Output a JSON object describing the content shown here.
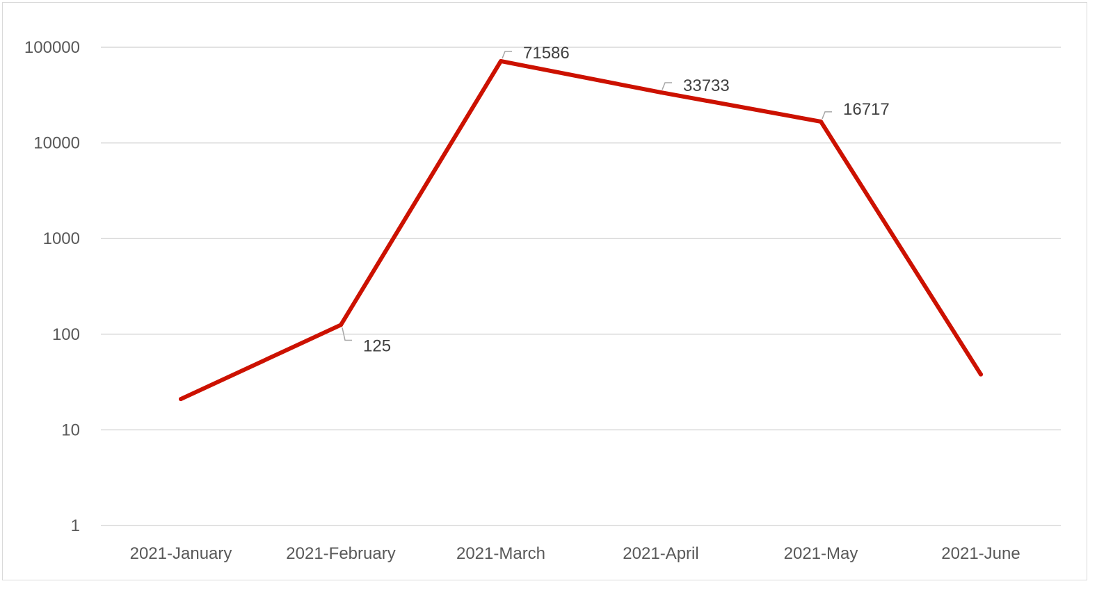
{
  "chart_data": {
    "type": "line",
    "title": "",
    "xlabel": "",
    "ylabel": "",
    "categories": [
      "2021-January",
      "2021-February",
      "2021-March",
      "2021-April",
      "2021-May",
      "2021-June"
    ],
    "series": [
      {
        "values": [
          21,
          125,
          71586,
          33733,
          16717,
          38
        ],
        "color": "#cc1100",
        "data_labels": [
          "",
          "125",
          "71586",
          "33733",
          "16717",
          ""
        ]
      }
    ],
    "y_scale": "log",
    "ylim": [
      1,
      100000
    ],
    "y_ticks": [
      "1",
      "10",
      "100",
      "1000",
      "10000",
      "100000"
    ],
    "grid": true,
    "gridline_color": "#d9d9d9",
    "legend": "none"
  }
}
